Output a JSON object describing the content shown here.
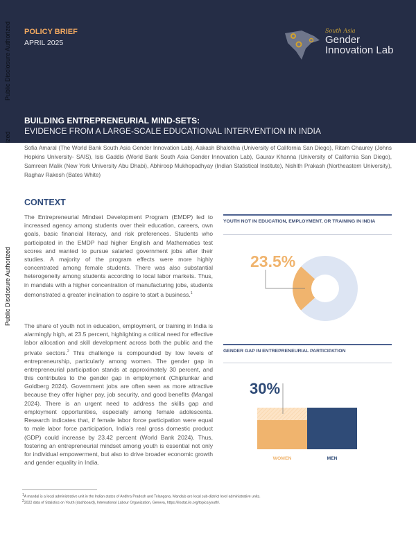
{
  "sidebar": {
    "disclosure": "Public Disclosure Authorized",
    "disclosure_fragment": "ized"
  },
  "header": {
    "label": "POLICY BRIEF",
    "date": "APRIL 2025",
    "logo": {
      "line1": "South Asia",
      "line2": "Gender",
      "line3": "Innovation Lab"
    },
    "title": "BUILDING ENTREPRENEURIAL MIND-SETS:",
    "subtitle": "EVIDENCE FROM A LARGE-SCALE EDUCATIONAL INTERVENTION IN INDIA"
  },
  "authors": "Sofia Amaral (The World Bank South Asia Gender Innovation Lab), Aakash Bhalothia (University of California San Diego), Ritam Chaurey (Johns Hopkins University- SAIS), Isis Gaddis (World Bank South Asia Gender Innovation Lab), Gaurav Khanna (University of California San Diego), Samreen Malik (New York University Abu Dhabi), Abhiroop Mukhopadhyay (Indian Statistical Institute), Nishith Prakash (Northeastern University), Raghav Rakesh (Bates White)",
  "context": {
    "heading": "CONTEXT",
    "p1": "The Entrepreneurial Mindset Development Program (EMDP) led to increased agency among students over their education, careers, own goals, basic financial literacy, and risk preferences. Students who participated in the EMDP had higher English and Mathematics test scores and wanted to pursue salaried government jobs after their studies. A majority of the program effects were more highly concentrated among female students. There was also substantial heterogeneity among students according to local labor markets. Thus, in mandals with a higher concentration of manufacturing jobs, students demonstrated a greater inclination to aspire to start a business.",
    "p1_sup": "1",
    "p2a": "The share of youth not in education, employment, or training in India is alarmingly high, at 23.5 percent, highlighting a critical need for effective labor allocation and skill development across both the public and the private sectors.",
    "p2_sup": "2",
    "p2b": " This challenge is compounded by low levels of entrepreneurship, particularly among women. The gender gap in entrepreneurial participation stands at approximately 30 percent, and this contributes to the gender gap in employment (Chiplunkar and Goldberg 2024). Government jobs are often seen as more attractive because they offer higher pay, job security, and good benefits (Mangal 2024). There is an urgent need to address the skills gap and employment opportunities, especially among female adolescents. Research indicates that, if female labor force participation were equal to male labor force participation, India's real gross domestic product (GDP) could increase by 23.42 percent (World Bank 2024). Thus, fostering an entrepreneurial mindset among youth is essential not only for individual empowerment, but also to drive broader economic growth and gender equality in India."
  },
  "footnotes": [
    {
      "num": "1",
      "text": "A mandal is a local administrative unit in the Indian states of Andhra Pradesh and Telangana. Mandals are local sub-district level administrative units."
    },
    {
      "num": "2",
      "text": "2022 data of Statistics on Youth (dashboard), International Labour Organization, Geneva, https://ilostat.ilo.org/topics/youth/."
    }
  ],
  "colors": {
    "navy": "#252d46",
    "orange": "#f0b46e",
    "light_blue": "#dde5f3",
    "bar_navy": "#2f4b77",
    "light_orange": "#fde4c6"
  },
  "chart_data": [
    {
      "type": "pie",
      "title": "YOUTH NOT IN EDUCATION, EMPLOYMENT, OR TRAINING IN INDIA",
      "values": [
        23.5,
        76.5
      ],
      "data_label": "23.5%",
      "colors": [
        "#f0b46e",
        "#dde5f3"
      ]
    },
    {
      "type": "bar",
      "title": "GENDER GAP IN ENTREPRENEURIAL PARTICIPATION",
      "categories": [
        "WOMEN",
        "MEN"
      ],
      "values": [
        70,
        100
      ],
      "gap": 30,
      "data_label": "30%",
      "colors": [
        "#f0b46e",
        "#2f4b77"
      ]
    }
  ]
}
